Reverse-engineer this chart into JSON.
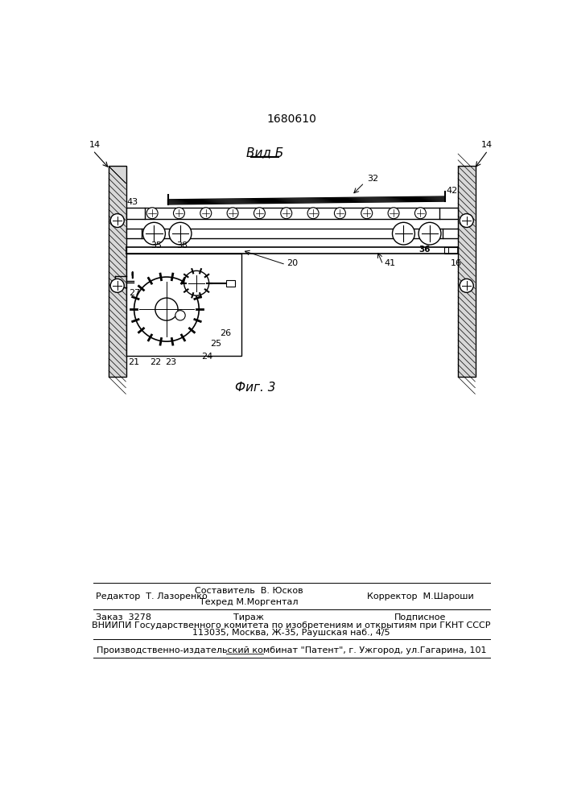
{
  "bg_color": "#ffffff",
  "patent_number": "1680610",
  "view_label": "Вид Б",
  "fig_label": "Фиг. 3",
  "footer_line1_left": "Редактор  Т. Лазоренко",
  "footer_line1_center_top": "Составитель  В. Юсков",
  "footer_line1_center_bot": "Техред М.Моргентал",
  "footer_line1_right": "Корректор  М.Шароши",
  "footer_line2_left": "Заказ  3278",
  "footer_line2_center": "Тираж",
  "footer_line2_right": "Подписное",
  "footer_line3": "ВНИИПИ Государственного комитета по изобретениям и открытиям при ГКНТ СССР",
  "footer_line4": "113035, Москва, Ж-35, Раушская наб., 4/5",
  "footer_line5": "Производственно-издательский комбинат \"Патент\", г. Ужгород, ул.Гагарина, 101",
  "text_color": "#000000"
}
